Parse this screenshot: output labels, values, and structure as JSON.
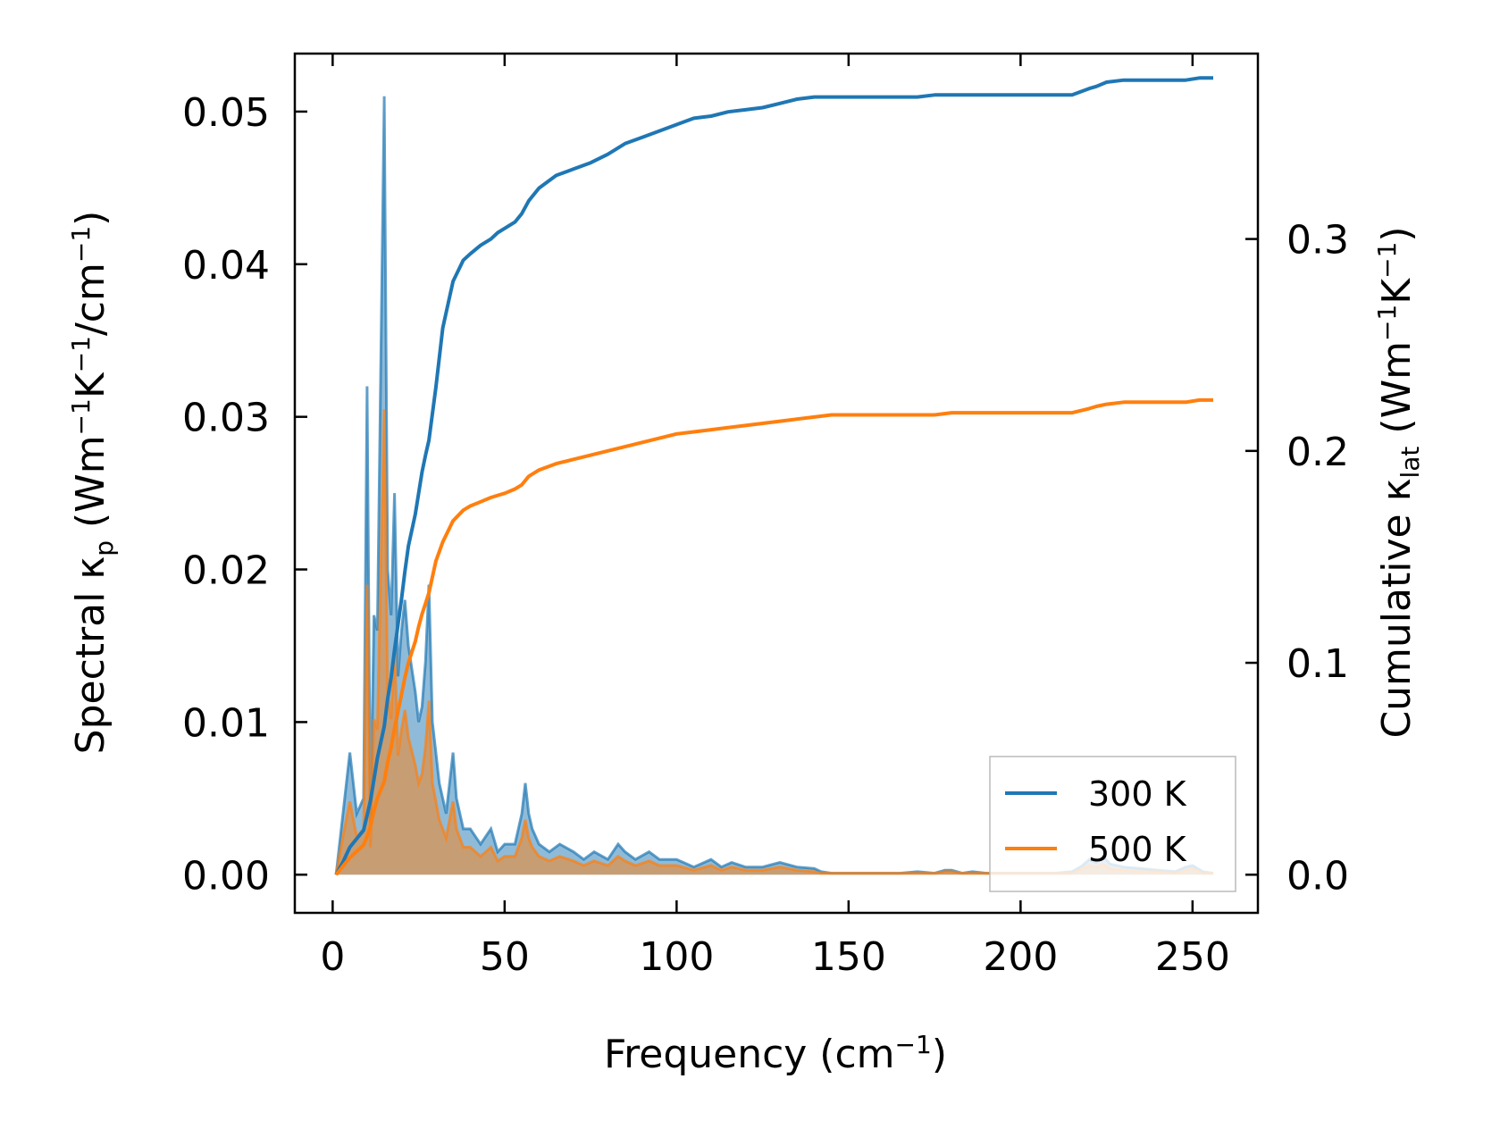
{
  "chart_data": {
    "type": "line",
    "x_axis": {
      "label_main": "Frequency (cm",
      "label_sup": "−1",
      "label_close": ")",
      "range": [
        -11,
        269
      ],
      "ticks": [
        0,
        50,
        100,
        150,
        200,
        250
      ],
      "tick_labels": [
        "0",
        "50",
        "100",
        "150",
        "200",
        "250"
      ]
    },
    "y_left": {
      "label_pre": "Spectral κ",
      "label_sub": "p",
      "label_open": " (Wm",
      "sup1": "−1",
      "label_k": "K",
      "sup2": "−1",
      "label_cm": "/cm",
      "sup3": "−1",
      "label_close": ")",
      "range": [
        -0.0025,
        0.0538
      ],
      "ticks": [
        0,
        0.01,
        0.02,
        0.03,
        0.04,
        0.05
      ],
      "tick_labels": [
        "0.00",
        "0.01",
        "0.02",
        "0.03",
        "0.04",
        "0.05"
      ]
    },
    "y_right": {
      "label_pre": "Cumulative κ",
      "label_sub": "lat",
      "label_open": " (Wm",
      "sup1": "−1",
      "label_k": "K",
      "sup2": "−1",
      "label_close": ")",
      "range": [
        -0.018,
        0.3875
      ],
      "ticks": [
        0,
        0.1,
        0.2,
        0.3
      ],
      "tick_labels": [
        "0.0",
        "0.1",
        "0.2",
        "0.3"
      ]
    },
    "legend": {
      "position": "lower-right",
      "entries": [
        {
          "name": "300 K",
          "color": "#1f77b4"
        },
        {
          "name": "500 K",
          "color": "#ff7f0e"
        }
      ]
    },
    "spectral_series": [
      {
        "name": "300 K",
        "color": "#1f77b4",
        "x": [
          1,
          3,
          5,
          7,
          9,
          10,
          11,
          12,
          13,
          15,
          16,
          17,
          18,
          19,
          20,
          21,
          22,
          24,
          25,
          26,
          27,
          28,
          29,
          30,
          31,
          33,
          35,
          36,
          38,
          40,
          43,
          46,
          48,
          50,
          53,
          55,
          56,
          57,
          58,
          60,
          63,
          66,
          70,
          73,
          76,
          80,
          83,
          85,
          88,
          92,
          95,
          100,
          105,
          110,
          113,
          116,
          120,
          125,
          130,
          135,
          140,
          142,
          145,
          150,
          155,
          160,
          165,
          170,
          175,
          178,
          180,
          183,
          186,
          190,
          195,
          200,
          205,
          210,
          215,
          218,
          220,
          222,
          224,
          226,
          230,
          235,
          240,
          245,
          248,
          250,
          253,
          256
        ],
        "values": [
          0.0,
          0.004,
          0.008,
          0.004,
          0.005,
          0.032,
          0.003,
          0.017,
          0.016,
          0.051,
          0.02,
          0.017,
          0.025,
          0.013,
          0.016,
          0.018,
          0.015,
          0.012,
          0.01,
          0.011,
          0.014,
          0.019,
          0.01,
          0.008,
          0.006,
          0.004,
          0.008,
          0.005,
          0.003,
          0.003,
          0.002,
          0.003,
          0.0015,
          0.002,
          0.002,
          0.004,
          0.006,
          0.004,
          0.003,
          0.002,
          0.0015,
          0.002,
          0.0015,
          0.001,
          0.0015,
          0.001,
          0.002,
          0.0015,
          0.001,
          0.0015,
          0.001,
          0.001,
          0.0005,
          0.001,
          0.0005,
          0.0008,
          0.0005,
          0.0005,
          0.0008,
          0.0005,
          0.0004,
          0.0002,
          0.0001,
          0.0001,
          0.0001,
          0.0001,
          0.0001,
          0.0002,
          0.0001,
          0.0003,
          0.0003,
          0.0001,
          0.0002,
          0.0001,
          0.0001,
          0.0001,
          0.0001,
          0.0001,
          0.0002,
          0.0006,
          0.001,
          0.0008,
          0.0012,
          0.0007,
          0.0005,
          0.0004,
          0.0003,
          0.0002,
          0.0005,
          0.0006,
          0.0002,
          0.0001
        ]
      },
      {
        "name": "500 K",
        "color": "#ff7f0e",
        "x": [
          1,
          3,
          5,
          7,
          9,
          10,
          11,
          12,
          13,
          15,
          16,
          17,
          18,
          19,
          20,
          21,
          22,
          24,
          25,
          26,
          27,
          28,
          29,
          30,
          31,
          33,
          35,
          36,
          38,
          40,
          43,
          46,
          48,
          50,
          53,
          55,
          56,
          57,
          58,
          60,
          63,
          66,
          70,
          73,
          76,
          80,
          83,
          85,
          88,
          92,
          95,
          100,
          105,
          110,
          113,
          116,
          120,
          125,
          130,
          135,
          140,
          142,
          145,
          150,
          155,
          160,
          165,
          170,
          175,
          178,
          180,
          183,
          186,
          190,
          195,
          200,
          205,
          210,
          215,
          218,
          220,
          222,
          224,
          226,
          230,
          235,
          240,
          245,
          248,
          250,
          253,
          256
        ],
        "values": [
          0.0,
          0.0025,
          0.0048,
          0.0025,
          0.003,
          0.019,
          0.0018,
          0.0102,
          0.0095,
          0.0305,
          0.012,
          0.0102,
          0.015,
          0.0078,
          0.0095,
          0.0108,
          0.009,
          0.0072,
          0.006,
          0.0066,
          0.0084,
          0.0114,
          0.006,
          0.0048,
          0.0036,
          0.0024,
          0.0048,
          0.003,
          0.0018,
          0.0018,
          0.0012,
          0.0018,
          0.0009,
          0.0012,
          0.0012,
          0.0024,
          0.0036,
          0.0024,
          0.0018,
          0.0012,
          0.0009,
          0.0012,
          0.0009,
          0.0006,
          0.0009,
          0.0006,
          0.0012,
          0.0009,
          0.0006,
          0.0009,
          0.0006,
          0.0006,
          0.0003,
          0.0006,
          0.0003,
          0.0005,
          0.0003,
          0.0003,
          0.0005,
          0.0003,
          0.0002,
          0.0001,
          0.0001,
          0.0001,
          0.0001,
          0.0001,
          0.0001,
          0.0001,
          0.0001,
          0.0002,
          0.0002,
          0.0001,
          0.0001,
          0.0001,
          0.0001,
          0.0001,
          0.0001,
          0.0001,
          0.0001,
          0.0004,
          0.0006,
          0.0005,
          0.0007,
          0.0004,
          0.0003,
          0.0002,
          0.0002,
          0.0001,
          0.0003,
          0.0004,
          0.0001,
          0.0001
        ]
      }
    ],
    "cumulative_series": [
      {
        "name": "300 K",
        "color": "#1f77b4",
        "x": [
          1,
          3,
          5,
          7,
          9,
          10,
          11,
          12,
          13,
          15,
          16,
          17,
          18,
          19,
          20,
          21,
          22,
          24,
          25,
          26,
          27,
          28,
          30,
          32,
          35,
          38,
          40,
          43,
          46,
          48,
          50,
          53,
          55,
          57,
          60,
          65,
          70,
          75,
          80,
          85,
          90,
          95,
          100,
          105,
          110,
          115,
          120,
          125,
          130,
          135,
          140,
          145,
          150,
          160,
          170,
          175,
          180,
          190,
          200,
          210,
          215,
          220,
          222,
          225,
          230,
          240,
          248,
          252,
          256
        ],
        "values": [
          0.0,
          0.006,
          0.013,
          0.017,
          0.021,
          0.028,
          0.035,
          0.045,
          0.055,
          0.07,
          0.083,
          0.093,
          0.106,
          0.118,
          0.13,
          0.143,
          0.155,
          0.17,
          0.18,
          0.19,
          0.198,
          0.205,
          0.23,
          0.258,
          0.28,
          0.29,
          0.293,
          0.297,
          0.3,
          0.303,
          0.305,
          0.308,
          0.312,
          0.318,
          0.324,
          0.33,
          0.333,
          0.336,
          0.34,
          0.345,
          0.348,
          0.351,
          0.354,
          0.357,
          0.358,
          0.36,
          0.361,
          0.362,
          0.364,
          0.366,
          0.367,
          0.367,
          0.367,
          0.367,
          0.367,
          0.368,
          0.368,
          0.368,
          0.368,
          0.368,
          0.368,
          0.371,
          0.372,
          0.374,
          0.375,
          0.375,
          0.375,
          0.376,
          0.376
        ]
      },
      {
        "name": "500 K",
        "color": "#ff7f0e",
        "x": [
          1,
          3,
          5,
          7,
          9,
          10,
          11,
          12,
          13,
          15,
          16,
          17,
          18,
          19,
          20,
          21,
          22,
          24,
          25,
          26,
          27,
          28,
          30,
          32,
          35,
          38,
          40,
          43,
          46,
          48,
          50,
          53,
          55,
          57,
          60,
          65,
          70,
          75,
          80,
          85,
          90,
          95,
          100,
          105,
          110,
          115,
          120,
          125,
          130,
          135,
          140,
          145,
          150,
          160,
          170,
          175,
          180,
          190,
          200,
          210,
          215,
          220,
          222,
          225,
          230,
          240,
          248,
          252,
          256
        ],
        "values": [
          0.0,
          0.004,
          0.008,
          0.011,
          0.014,
          0.018,
          0.023,
          0.03,
          0.036,
          0.044,
          0.053,
          0.06,
          0.069,
          0.077,
          0.085,
          0.093,
          0.1,
          0.11,
          0.117,
          0.123,
          0.128,
          0.133,
          0.148,
          0.157,
          0.167,
          0.172,
          0.174,
          0.176,
          0.178,
          0.179,
          0.18,
          0.182,
          0.184,
          0.188,
          0.191,
          0.194,
          0.196,
          0.198,
          0.2,
          0.202,
          0.204,
          0.206,
          0.208,
          0.209,
          0.21,
          0.211,
          0.212,
          0.213,
          0.214,
          0.215,
          0.216,
          0.217,
          0.217,
          0.217,
          0.217,
          0.217,
          0.218,
          0.218,
          0.218,
          0.218,
          0.218,
          0.22,
          0.221,
          0.222,
          0.223,
          0.223,
          0.223,
          0.224,
          0.224
        ]
      }
    ]
  }
}
